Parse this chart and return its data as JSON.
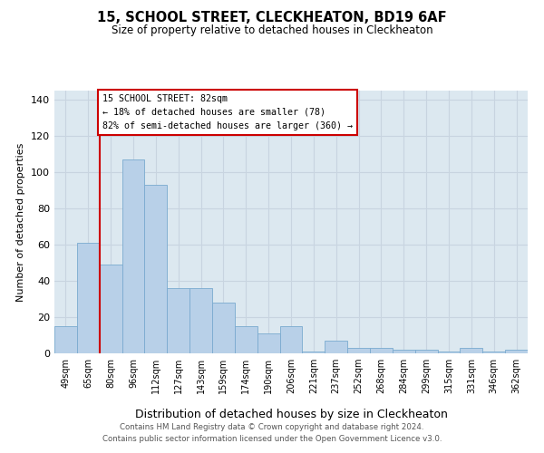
{
  "title_line1": "15, SCHOOL STREET, CLECKHEATON, BD19 6AF",
  "title_line2": "Size of property relative to detached houses in Cleckheaton",
  "xlabel": "Distribution of detached houses by size in Cleckheaton",
  "ylabel": "Number of detached properties",
  "categories": [
    "49sqm",
    "65sqm",
    "80sqm",
    "96sqm",
    "112sqm",
    "127sqm",
    "143sqm",
    "159sqm",
    "174sqm",
    "190sqm",
    "206sqm",
    "221sqm",
    "237sqm",
    "252sqm",
    "268sqm",
    "284sqm",
    "299sqm",
    "315sqm",
    "331sqm",
    "346sqm",
    "362sqm"
  ],
  "values": [
    15,
    61,
    49,
    107,
    93,
    36,
    36,
    28,
    15,
    11,
    15,
    1,
    7,
    3,
    3,
    2,
    2,
    1,
    3,
    1,
    2
  ],
  "bar_color": "#b8d0e8",
  "bar_edge_color": "#7aaacf",
  "highlight_line_color": "#cc0000",
  "box_text_line1": "15 SCHOOL STREET: 82sqm",
  "box_text_line2": "← 18% of detached houses are smaller (78)",
  "box_text_line3": "82% of semi-detached houses are larger (360) →",
  "box_color": "#cc0000",
  "ylim": [
    0,
    145
  ],
  "yticks": [
    0,
    20,
    40,
    60,
    80,
    100,
    120,
    140
  ],
  "grid_color": "#c8d4e0",
  "bg_color": "#dce8f0",
  "footer_line1": "Contains HM Land Registry data © Crown copyright and database right 2024.",
  "footer_line2": "Contains public sector information licensed under the Open Government Licence v3.0."
}
